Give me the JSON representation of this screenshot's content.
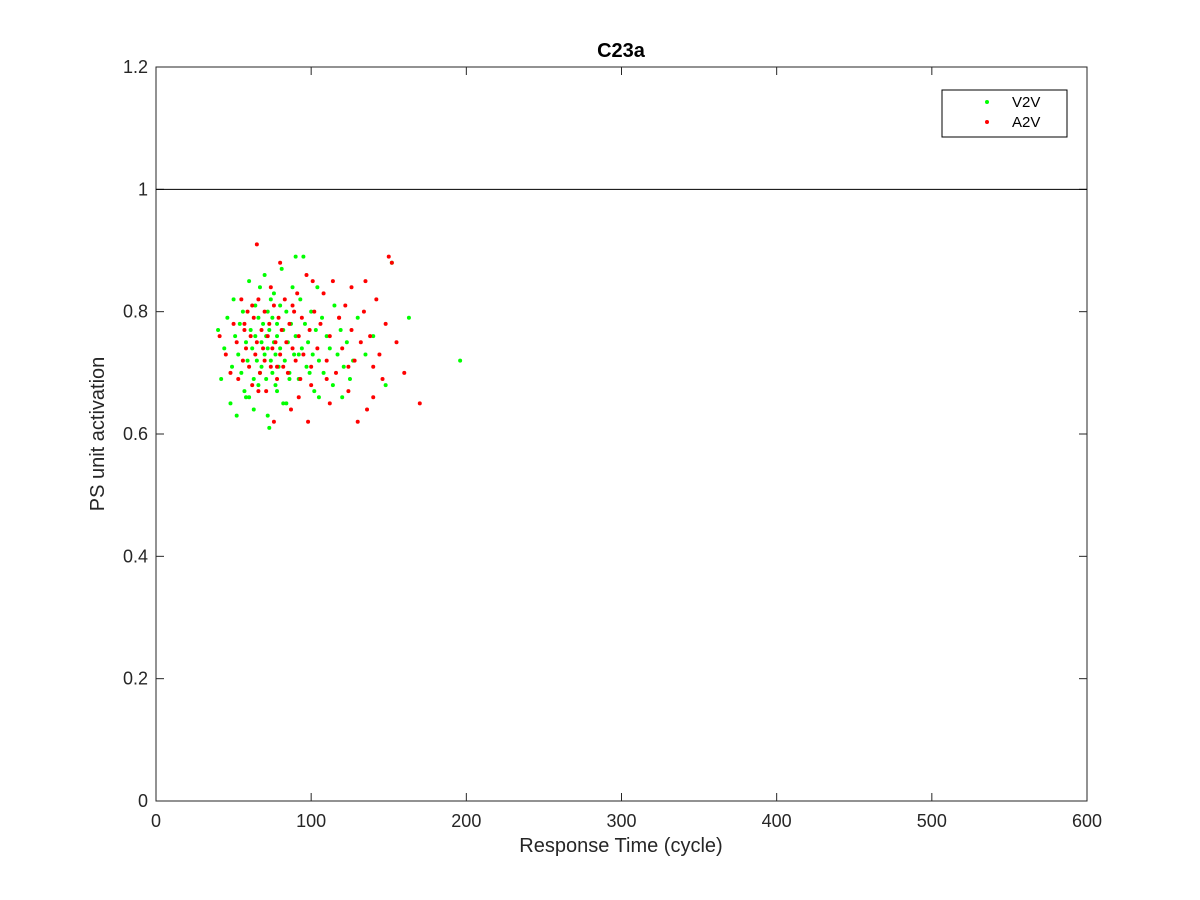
{
  "chart_data": {
    "type": "scatter",
    "title": "C23a",
    "xlabel": "Response Time (cycle)",
    "ylabel": "PS unit activation",
    "xlim": [
      0,
      600
    ],
    "ylim": [
      0,
      1.2
    ],
    "xticks": [
      0,
      100,
      200,
      300,
      400,
      500,
      600
    ],
    "yticks": [
      0,
      0.2,
      0.4,
      0.6,
      0.8,
      1,
      1.2
    ],
    "xtick_labels": [
      "0",
      "100",
      "200",
      "300",
      "400",
      "500",
      "600"
    ],
    "ytick_labels": [
      "0",
      "0.2",
      "0.4",
      "0.6",
      "0.8",
      "1",
      "1.2"
    ],
    "reference_line": {
      "y": 1
    },
    "grid": false,
    "legend": {
      "position": "top-right",
      "show": true
    },
    "series": [
      {
        "name": "V2V",
        "color": "#00ff00",
        "points": [
          [
            40,
            0.77
          ],
          [
            42,
            0.69
          ],
          [
            44,
            0.74
          ],
          [
            46,
            0.79
          ],
          [
            48,
            0.65
          ],
          [
            49,
            0.71
          ],
          [
            50,
            0.82
          ],
          [
            51,
            0.76
          ],
          [
            52,
            0.63
          ],
          [
            53,
            0.73
          ],
          [
            54,
            0.78
          ],
          [
            55,
            0.7
          ],
          [
            56,
            0.8
          ],
          [
            57,
            0.67
          ],
          [
            58,
            0.75
          ],
          [
            59,
            0.72
          ],
          [
            60,
            0.85
          ],
          [
            60,
            0.66
          ],
          [
            61,
            0.77
          ],
          [
            62,
            0.74
          ],
          [
            63,
            0.69
          ],
          [
            64,
            0.81
          ],
          [
            64,
            0.76
          ],
          [
            65,
            0.72
          ],
          [
            66,
            0.79
          ],
          [
            66,
            0.68
          ],
          [
            67,
            0.84
          ],
          [
            68,
            0.75
          ],
          [
            68,
            0.71
          ],
          [
            69,
            0.78
          ],
          [
            70,
            0.73
          ],
          [
            70,
            0.86
          ],
          [
            71,
            0.76
          ],
          [
            71,
            0.69
          ],
          [
            72,
            0.8
          ],
          [
            72,
            0.74
          ],
          [
            73,
            0.61
          ],
          [
            73,
            0.77
          ],
          [
            74,
            0.82
          ],
          [
            74,
            0.72
          ],
          [
            75,
            0.79
          ],
          [
            75,
            0.7
          ],
          [
            76,
            0.75
          ],
          [
            76,
            0.83
          ],
          [
            77,
            0.73
          ],
          [
            77,
            0.68
          ],
          [
            78,
            0.78
          ],
          [
            78,
            0.76
          ],
          [
            79,
            0.71
          ],
          [
            80,
            0.81
          ],
          [
            80,
            0.74
          ],
          [
            81,
            0.87
          ],
          [
            82,
            0.77
          ],
          [
            82,
            0.65
          ],
          [
            83,
            0.72
          ],
          [
            84,
            0.8
          ],
          [
            85,
            0.75
          ],
          [
            86,
            0.7
          ],
          [
            87,
            0.78
          ],
          [
            88,
            0.84
          ],
          [
            89,
            0.73
          ],
          [
            90,
            0.89
          ],
          [
            90,
            0.76
          ],
          [
            92,
            0.69
          ],
          [
            93,
            0.82
          ],
          [
            94,
            0.74
          ],
          [
            95,
            0.89
          ],
          [
            96,
            0.78
          ],
          [
            97,
            0.71
          ],
          [
            98,
            0.75
          ],
          [
            100,
            0.8
          ],
          [
            101,
            0.73
          ],
          [
            102,
            0.67
          ],
          [
            103,
            0.77
          ],
          [
            104,
            0.84
          ],
          [
            105,
            0.72
          ],
          [
            107,
            0.79
          ],
          [
            108,
            0.7
          ],
          [
            110,
            0.76
          ],
          [
            112,
            0.74
          ],
          [
            114,
            0.68
          ],
          [
            115,
            0.81
          ],
          [
            117,
            0.73
          ],
          [
            119,
            0.77
          ],
          [
            120,
            0.66
          ],
          [
            121,
            0.71
          ],
          [
            123,
            0.75
          ],
          [
            125,
            0.69
          ],
          [
            127,
            0.72
          ],
          [
            130,
            0.79
          ],
          [
            135,
            0.73
          ],
          [
            140,
            0.76
          ],
          [
            148,
            0.68
          ],
          [
            152,
            0.88
          ],
          [
            163,
            0.79
          ],
          [
            196,
            0.72
          ],
          [
            58,
            0.66
          ],
          [
            63,
            0.64
          ],
          [
            67,
            0.7
          ],
          [
            72,
            0.63
          ],
          [
            78,
            0.67
          ],
          [
            84,
            0.65
          ],
          [
            86,
            0.69
          ],
          [
            92,
            0.73
          ],
          [
            99,
            0.7
          ],
          [
            105,
            0.66
          ]
        ]
      },
      {
        "name": "A2V",
        "color": "#ff0000",
        "points": [
          [
            41,
            0.76
          ],
          [
            45,
            0.73
          ],
          [
            48,
            0.7
          ],
          [
            50,
            0.78
          ],
          [
            52,
            0.75
          ],
          [
            53,
            0.69
          ],
          [
            55,
            0.82
          ],
          [
            56,
            0.72
          ],
          [
            57,
            0.77
          ],
          [
            58,
            0.74
          ],
          [
            59,
            0.8
          ],
          [
            60,
            0.71
          ],
          [
            61,
            0.76
          ],
          [
            62,
            0.68
          ],
          [
            63,
            0.79
          ],
          [
            64,
            0.73
          ],
          [
            65,
            0.91
          ],
          [
            65,
            0.75
          ],
          [
            66,
            0.82
          ],
          [
            67,
            0.7
          ],
          [
            68,
            0.77
          ],
          [
            69,
            0.74
          ],
          [
            70,
            0.72
          ],
          [
            70,
            0.8
          ],
          [
            71,
            0.67
          ],
          [
            72,
            0.76
          ],
          [
            73,
            0.78
          ],
          [
            74,
            0.71
          ],
          [
            75,
            0.74
          ],
          [
            76,
            0.81
          ],
          [
            76,
            0.62
          ],
          [
            77,
            0.75
          ],
          [
            78,
            0.69
          ],
          [
            79,
            0.79
          ],
          [
            80,
            0.73
          ],
          [
            80,
            0.88
          ],
          [
            81,
            0.77
          ],
          [
            82,
            0.71
          ],
          [
            83,
            0.82
          ],
          [
            84,
            0.75
          ],
          [
            85,
            0.7
          ],
          [
            86,
            0.78
          ],
          [
            87,
            0.64
          ],
          [
            88,
            0.74
          ],
          [
            89,
            0.8
          ],
          [
            90,
            0.72
          ],
          [
            91,
            0.83
          ],
          [
            92,
            0.76
          ],
          [
            93,
            0.69
          ],
          [
            94,
            0.79
          ],
          [
            95,
            0.73
          ],
          [
            97,
            0.86
          ],
          [
            98,
            0.62
          ],
          [
            99,
            0.77
          ],
          [
            100,
            0.71
          ],
          [
            102,
            0.8
          ],
          [
            104,
            0.74
          ],
          [
            106,
            0.78
          ],
          [
            108,
            0.83
          ],
          [
            110,
            0.72
          ],
          [
            112,
            0.76
          ],
          [
            114,
            0.85
          ],
          [
            116,
            0.7
          ],
          [
            118,
            0.79
          ],
          [
            120,
            0.74
          ],
          [
            122,
            0.81
          ],
          [
            124,
            0.67
          ],
          [
            126,
            0.77
          ],
          [
            128,
            0.72
          ],
          [
            130,
            0.62
          ],
          [
            132,
            0.75
          ],
          [
            134,
            0.8
          ],
          [
            136,
            0.64
          ],
          [
            138,
            0.76
          ],
          [
            140,
            0.71
          ],
          [
            142,
            0.82
          ],
          [
            144,
            0.73
          ],
          [
            146,
            0.69
          ],
          [
            148,
            0.78
          ],
          [
            150,
            0.89
          ],
          [
            152,
            0.88
          ],
          [
            155,
            0.75
          ],
          [
            160,
            0.7
          ],
          [
            170,
            0.65
          ],
          [
            135,
            0.85
          ],
          [
            126,
            0.84
          ],
          [
            118,
            0.79
          ],
          [
            101,
            0.85
          ],
          [
            88,
            0.81
          ],
          [
            74,
            0.84
          ],
          [
            62,
            0.81
          ],
          [
            57,
            0.78
          ],
          [
            66,
            0.67
          ],
          [
            78,
            0.71
          ],
          [
            92,
            0.66
          ],
          [
            110,
            0.69
          ],
          [
            124,
            0.71
          ],
          [
            140,
            0.66
          ],
          [
            100,
            0.68
          ],
          [
            112,
            0.65
          ]
        ]
      }
    ]
  }
}
